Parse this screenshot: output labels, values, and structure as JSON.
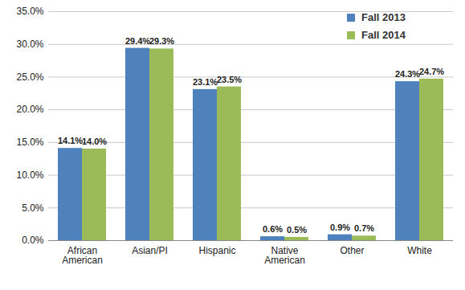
{
  "chart_data": {
    "type": "bar",
    "categories": [
      "African American",
      "Asian/PI",
      "Hispanic",
      "Native American",
      "Other",
      "White"
    ],
    "series": [
      {
        "name": "Fall 2013",
        "color": "#4f81bd",
        "values": [
          14.1,
          29.4,
          23.1,
          0.6,
          0.9,
          24.3
        ],
        "value_labels": [
          "14.1%",
          "29.4%",
          "23.1%",
          "0.6%",
          "0.9%",
          "24.3%"
        ]
      },
      {
        "name": "Fall 2014",
        "color": "#9bbb59",
        "values": [
          14.0,
          29.3,
          23.5,
          0.5,
          0.7,
          24.7
        ],
        "value_labels": [
          "14.0%",
          "29.3%",
          "23.5%",
          "0.5%",
          "0.7%",
          "24.7%"
        ]
      }
    ],
    "ylim": [
      0,
      35
    ],
    "yticks": [
      {
        "value": 0,
        "label": "0.0%"
      },
      {
        "value": 5,
        "label": "5.0%"
      },
      {
        "value": 10,
        "label": "10.0%"
      },
      {
        "value": 15,
        "label": "15.0%"
      },
      {
        "value": 20,
        "label": "20.0%"
      },
      {
        "value": 25,
        "label": "25.0%"
      },
      {
        "value": 30,
        "label": "30.0%"
      },
      {
        "value": 35,
        "label": "35.0%"
      }
    ],
    "grid": true,
    "legend": "top-right",
    "data_labels": true
  }
}
